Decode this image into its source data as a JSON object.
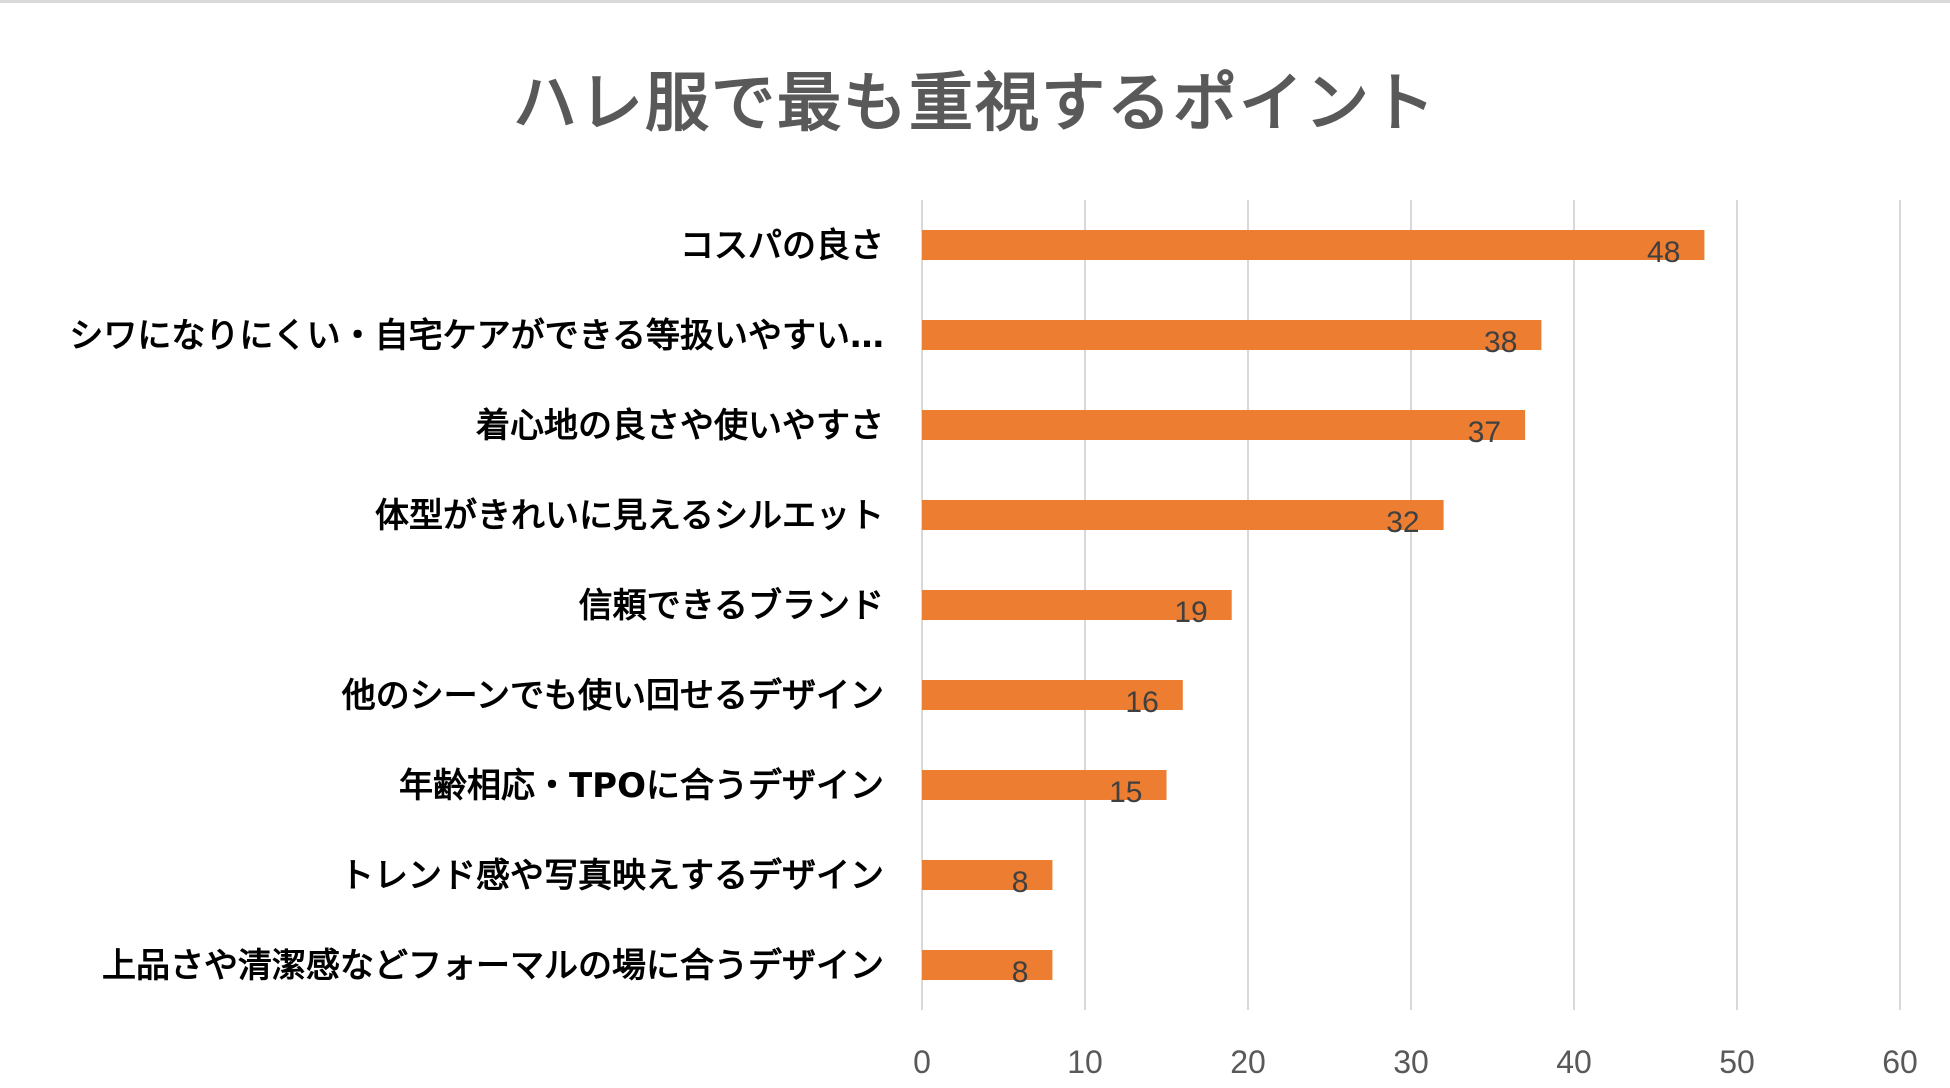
{
  "chart_data": {
    "type": "bar",
    "orientation": "horizontal",
    "title": "ハレ服で最も重視するポイント",
    "categories": [
      "コスパの良さ",
      "シワになりにくい・自宅ケアができる等扱いやすい…",
      "着心地の良さや使いやすさ",
      "体型がきれいに見えるシルエット",
      "信頼できるブランド",
      "他のシーンでも使い回せるデザイン",
      "年齢相応・TPOに合うデザイン",
      "トレンド感や写真映えするデザイン",
      "上品さや清潔感などフォーマルの場に合うデザイン"
    ],
    "values": [
      48,
      38,
      37,
      32,
      19,
      16,
      15,
      8,
      8
    ],
    "xlim": [
      0,
      60
    ],
    "xticks": [
      0,
      10,
      20,
      30,
      40,
      50,
      60
    ],
    "grid": "vertical",
    "data_labels": "inside-end",
    "colors": {
      "bar": "#ed7d31",
      "grid": "#d9d9d9",
      "title": "#595959",
      "tick": "#595959"
    }
  }
}
